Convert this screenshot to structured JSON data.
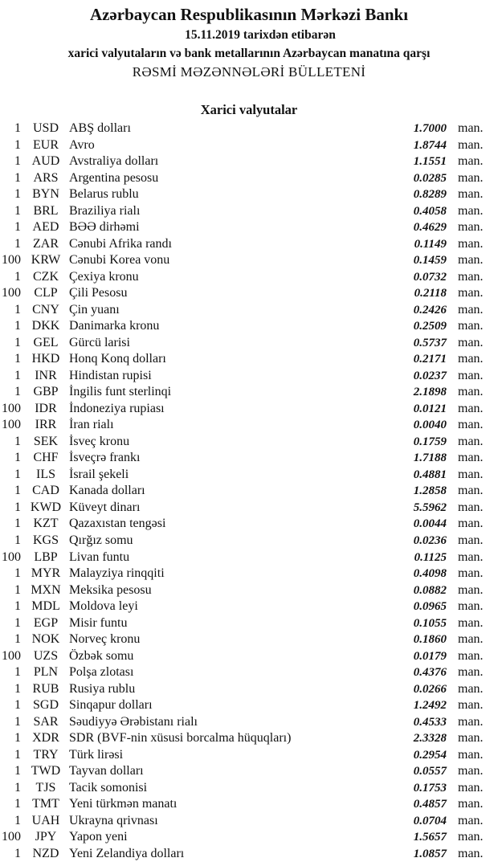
{
  "header": {
    "bank": "Azərbaycan Respublikasının Mərkəzi Bankı",
    "date_line": "15.11.2019  tarixdən etibarən",
    "subtitle": "xarici valyutaların və bank metallarının Azərbaycan manatına qarşı",
    "bulletin": "RƏSMİ MƏZƏNNƏLƏRİ BÜLLETENİ",
    "section": "Xarici valyutalar"
  },
  "rates": [
    {
      "amount": "1",
      "code": "USD",
      "name": "ABŞ dolları",
      "rate": "1.7000",
      "unit": "man."
    },
    {
      "amount": "1",
      "code": "EUR",
      "name": "Avro",
      "rate": "1.8744",
      "unit": "man."
    },
    {
      "amount": "1",
      "code": "AUD",
      "name": "Avstraliya dolları",
      "rate": "1.1551",
      "unit": "man."
    },
    {
      "amount": "1",
      "code": "ARS",
      "name": "Argentina pesosu",
      "rate": "0.0285",
      "unit": "man."
    },
    {
      "amount": "1",
      "code": "BYN",
      "name": "Belarus rublu",
      "rate": "0.8289",
      "unit": "man."
    },
    {
      "amount": "1",
      "code": "BRL",
      "name": "Braziliya rialı",
      "rate": "0.4058",
      "unit": "man."
    },
    {
      "amount": "1",
      "code": "AED",
      "name": "BƏƏ dirhəmi",
      "rate": "0.4629",
      "unit": "man."
    },
    {
      "amount": "1",
      "code": "ZAR",
      "name": "Cənubi Afrika randı",
      "rate": "0.1149",
      "unit": "man."
    },
    {
      "amount": "100",
      "code": "KRW",
      "name": "Cənubi Korea vonu",
      "rate": "0.1459",
      "unit": "man."
    },
    {
      "amount": "1",
      "code": "CZK",
      "name": "Çexiya kronu",
      "rate": "0.0732",
      "unit": "man."
    },
    {
      "amount": "100",
      "code": "CLP",
      "name": "Çili Pesosu",
      "rate": "0.2118",
      "unit": "man."
    },
    {
      "amount": "1",
      "code": "CNY",
      "name": "Çin yuanı",
      "rate": "0.2426",
      "unit": "man."
    },
    {
      "amount": "1",
      "code": "DKK",
      "name": "Danimarka kronu",
      "rate": "0.2509",
      "unit": "man."
    },
    {
      "amount": "1",
      "code": "GEL",
      "name": "Gürcü larisi",
      "rate": "0.5737",
      "unit": "man."
    },
    {
      "amount": "1",
      "code": "HKD",
      "name": "Honq Konq dolları",
      "rate": "0.2171",
      "unit": "man."
    },
    {
      "amount": "1",
      "code": "INR",
      "name": "Hindistan rupisi",
      "rate": "0.0237",
      "unit": "man."
    },
    {
      "amount": "1",
      "code": "GBP",
      "name": "İngilis funt sterlinqi",
      "rate": "2.1898",
      "unit": "man."
    },
    {
      "amount": "100",
      "code": "IDR",
      "name": "İndoneziya rupiası",
      "rate": "0.0121",
      "unit": "man."
    },
    {
      "amount": "100",
      "code": "IRR",
      "name": "İran rialı",
      "rate": "0.0040",
      "unit": "man."
    },
    {
      "amount": "1",
      "code": "SEK",
      "name": "İsveç kronu",
      "rate": "0.1759",
      "unit": "man."
    },
    {
      "amount": "1",
      "code": "CHF",
      "name": "İsveçrə frankı",
      "rate": "1.7188",
      "unit": "man."
    },
    {
      "amount": "1",
      "code": "ILS",
      "name": "İsrail şekeli",
      "rate": "0.4881",
      "unit": "man."
    },
    {
      "amount": "1",
      "code": "CAD",
      "name": "Kanada dolları",
      "rate": "1.2858",
      "unit": "man."
    },
    {
      "amount": "1",
      "code": "KWD",
      "name": "Küveyt dinarı",
      "rate": "5.5962",
      "unit": "man."
    },
    {
      "amount": "1",
      "code": "KZT",
      "name": "Qazaxıstan tengəsi",
      "rate": "0.0044",
      "unit": "man."
    },
    {
      "amount": "1",
      "code": "KGS",
      "name": "Qırğız somu",
      "rate": "0.0236",
      "unit": "man."
    },
    {
      "amount": "100",
      "code": "LBP",
      "name": "Livan funtu",
      "rate": "0.1125",
      "unit": "man."
    },
    {
      "amount": "1",
      "code": "MYR",
      "name": "Malayziya rinqqiti",
      "rate": "0.4098",
      "unit": "man."
    },
    {
      "amount": "1",
      "code": "MXN",
      "name": "Meksika pesosu",
      "rate": "0.0882",
      "unit": "man."
    },
    {
      "amount": "1",
      "code": "MDL",
      "name": "Moldova leyi",
      "rate": "0.0965",
      "unit": "man."
    },
    {
      "amount": "1",
      "code": "EGP",
      "name": "Misir funtu",
      "rate": "0.1055",
      "unit": "man."
    },
    {
      "amount": "1",
      "code": "NOK",
      "name": "Norveç kronu",
      "rate": "0.1860",
      "unit": "man."
    },
    {
      "amount": "100",
      "code": "UZS",
      "name": "Özbək somu",
      "rate": "0.0179",
      "unit": "man."
    },
    {
      "amount": "1",
      "code": "PLN",
      "name": "Polşa zlotası",
      "rate": "0.4376",
      "unit": "man."
    },
    {
      "amount": "1",
      "code": "RUB",
      "name": "Rusiya rublu",
      "rate": "0.0266",
      "unit": "man."
    },
    {
      "amount": "1",
      "code": "SGD",
      "name": "Sinqapur dolları",
      "rate": "1.2492",
      "unit": "man."
    },
    {
      "amount": "1",
      "code": "SAR",
      "name": "Səudiyyə Ərəbistanı rialı",
      "rate": "0.4533",
      "unit": "man."
    },
    {
      "amount": "1",
      "code": "XDR",
      "name": "SDR (BVF-nin xüsusi borcalma hüquqları)",
      "rate": "2.3328",
      "unit": "man."
    },
    {
      "amount": "1",
      "code": "TRY",
      "name": "Türk lirəsi",
      "rate": "0.2954",
      "unit": "man."
    },
    {
      "amount": "1",
      "code": "TWD",
      "name": "Tayvan dolları",
      "rate": "0.0557",
      "unit": "man."
    },
    {
      "amount": "1",
      "code": "TJS",
      "name": "Tacik somonisi",
      "rate": "0.1753",
      "unit": "man."
    },
    {
      "amount": "1",
      "code": "TMT",
      "name": "Yeni türkmən manatı",
      "rate": "0.4857",
      "unit": "man."
    },
    {
      "amount": "1",
      "code": "UAH",
      "name": "Ukrayna qrivnası",
      "rate": "0.0704",
      "unit": "man."
    },
    {
      "amount": "100",
      "code": "JPY",
      "name": "Yapon yeni",
      "rate": "1.5657",
      "unit": "man."
    },
    {
      "amount": "1",
      "code": "NZD",
      "name": "Yeni Zelandiya dolları",
      "rate": "1.0857",
      "unit": "man."
    }
  ]
}
